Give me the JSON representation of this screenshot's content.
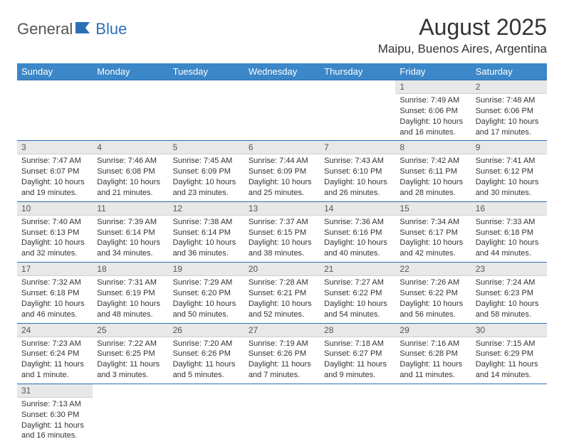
{
  "logo": {
    "part1": "General",
    "part2": "Blue"
  },
  "title": "August 2025",
  "location": "Maipu, Buenos Aires, Argentina",
  "colors": {
    "header_bg": "#3b87c8",
    "header_text": "#ffffff",
    "border": "#2d6fb5",
    "daynum_bg": "#e8e8e8",
    "logo_blue": "#2d6fb5"
  },
  "day_headers": [
    "Sunday",
    "Monday",
    "Tuesday",
    "Wednesday",
    "Thursday",
    "Friday",
    "Saturday"
  ],
  "weeks": [
    [
      null,
      null,
      null,
      null,
      null,
      {
        "n": "1",
        "sunrise": "7:49 AM",
        "sunset": "6:06 PM",
        "daylight": "10 hours and 16 minutes."
      },
      {
        "n": "2",
        "sunrise": "7:48 AM",
        "sunset": "6:06 PM",
        "daylight": "10 hours and 17 minutes."
      }
    ],
    [
      {
        "n": "3",
        "sunrise": "7:47 AM",
        "sunset": "6:07 PM",
        "daylight": "10 hours and 19 minutes."
      },
      {
        "n": "4",
        "sunrise": "7:46 AM",
        "sunset": "6:08 PM",
        "daylight": "10 hours and 21 minutes."
      },
      {
        "n": "5",
        "sunrise": "7:45 AM",
        "sunset": "6:09 PM",
        "daylight": "10 hours and 23 minutes."
      },
      {
        "n": "6",
        "sunrise": "7:44 AM",
        "sunset": "6:09 PM",
        "daylight": "10 hours and 25 minutes."
      },
      {
        "n": "7",
        "sunrise": "7:43 AM",
        "sunset": "6:10 PM",
        "daylight": "10 hours and 26 minutes."
      },
      {
        "n": "8",
        "sunrise": "7:42 AM",
        "sunset": "6:11 PM",
        "daylight": "10 hours and 28 minutes."
      },
      {
        "n": "9",
        "sunrise": "7:41 AM",
        "sunset": "6:12 PM",
        "daylight": "10 hours and 30 minutes."
      }
    ],
    [
      {
        "n": "10",
        "sunrise": "7:40 AM",
        "sunset": "6:13 PM",
        "daylight": "10 hours and 32 minutes."
      },
      {
        "n": "11",
        "sunrise": "7:39 AM",
        "sunset": "6:14 PM",
        "daylight": "10 hours and 34 minutes."
      },
      {
        "n": "12",
        "sunrise": "7:38 AM",
        "sunset": "6:14 PM",
        "daylight": "10 hours and 36 minutes."
      },
      {
        "n": "13",
        "sunrise": "7:37 AM",
        "sunset": "6:15 PM",
        "daylight": "10 hours and 38 minutes."
      },
      {
        "n": "14",
        "sunrise": "7:36 AM",
        "sunset": "6:16 PM",
        "daylight": "10 hours and 40 minutes."
      },
      {
        "n": "15",
        "sunrise": "7:34 AM",
        "sunset": "6:17 PM",
        "daylight": "10 hours and 42 minutes."
      },
      {
        "n": "16",
        "sunrise": "7:33 AM",
        "sunset": "6:18 PM",
        "daylight": "10 hours and 44 minutes."
      }
    ],
    [
      {
        "n": "17",
        "sunrise": "7:32 AM",
        "sunset": "6:18 PM",
        "daylight": "10 hours and 46 minutes."
      },
      {
        "n": "18",
        "sunrise": "7:31 AM",
        "sunset": "6:19 PM",
        "daylight": "10 hours and 48 minutes."
      },
      {
        "n": "19",
        "sunrise": "7:29 AM",
        "sunset": "6:20 PM",
        "daylight": "10 hours and 50 minutes."
      },
      {
        "n": "20",
        "sunrise": "7:28 AM",
        "sunset": "6:21 PM",
        "daylight": "10 hours and 52 minutes."
      },
      {
        "n": "21",
        "sunrise": "7:27 AM",
        "sunset": "6:22 PM",
        "daylight": "10 hours and 54 minutes."
      },
      {
        "n": "22",
        "sunrise": "7:26 AM",
        "sunset": "6:22 PM",
        "daylight": "10 hours and 56 minutes."
      },
      {
        "n": "23",
        "sunrise": "7:24 AM",
        "sunset": "6:23 PM",
        "daylight": "10 hours and 58 minutes."
      }
    ],
    [
      {
        "n": "24",
        "sunrise": "7:23 AM",
        "sunset": "6:24 PM",
        "daylight": "11 hours and 1 minute."
      },
      {
        "n": "25",
        "sunrise": "7:22 AM",
        "sunset": "6:25 PM",
        "daylight": "11 hours and 3 minutes."
      },
      {
        "n": "26",
        "sunrise": "7:20 AM",
        "sunset": "6:26 PM",
        "daylight": "11 hours and 5 minutes."
      },
      {
        "n": "27",
        "sunrise": "7:19 AM",
        "sunset": "6:26 PM",
        "daylight": "11 hours and 7 minutes."
      },
      {
        "n": "28",
        "sunrise": "7:18 AM",
        "sunset": "6:27 PM",
        "daylight": "11 hours and 9 minutes."
      },
      {
        "n": "29",
        "sunrise": "7:16 AM",
        "sunset": "6:28 PM",
        "daylight": "11 hours and 11 minutes."
      },
      {
        "n": "30",
        "sunrise": "7:15 AM",
        "sunset": "6:29 PM",
        "daylight": "11 hours and 14 minutes."
      }
    ],
    [
      {
        "n": "31",
        "sunrise": "7:13 AM",
        "sunset": "6:30 PM",
        "daylight": "11 hours and 16 minutes."
      },
      null,
      null,
      null,
      null,
      null,
      null
    ]
  ],
  "labels": {
    "sunrise": "Sunrise:",
    "sunset": "Sunset:",
    "daylight": "Daylight:"
  }
}
